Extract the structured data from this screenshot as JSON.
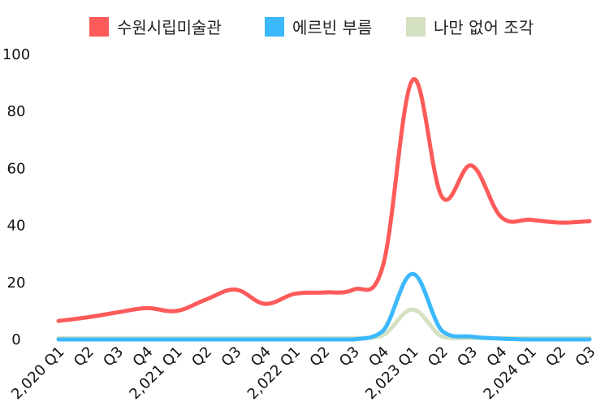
{
  "chart_data": {
    "type": "line",
    "title": "",
    "xlabel": "",
    "ylabel": "",
    "ylim": [
      0,
      100
    ],
    "yticks": [
      0,
      20,
      40,
      60,
      80,
      100
    ],
    "grid": false,
    "legend_position": "top",
    "categories": [
      "2,020 Q1",
      "Q2",
      "Q3",
      "Q4",
      "2,021 Q1",
      "Q2",
      "Q3",
      "Q4",
      "2,022 Q1",
      "Q2",
      "Q3",
      "Q4",
      "2,023 Q1",
      "Q2",
      "Q3",
      "Q4",
      "2,024 Q1",
      "Q2",
      "Q3"
    ],
    "series": [
      {
        "name": "수원시립미술관",
        "color": "#fd5a5a",
        "values": [
          6.5,
          7.8,
          9.5,
          11,
          10,
          14,
          17.5,
          12.5,
          16,
          16.5,
          17.5,
          26,
          91,
          50,
          61,
          43,
          42,
          41,
          41.5
        ]
      },
      {
        "name": "에르빈 부름",
        "color": "#3cb8fd",
        "values": [
          0,
          0,
          0,
          0,
          0,
          0,
          0,
          0,
          0,
          0,
          0,
          3,
          23,
          3,
          1,
          0.3,
          0,
          0,
          0
        ]
      },
      {
        "name": "나만 없어 조각",
        "color": "#d4e2c2",
        "values": [
          0.5,
          0.5,
          0.5,
          0.5,
          0.5,
          0.5,
          0.5,
          0.5,
          0.5,
          0.5,
          0.5,
          1.5,
          10.5,
          1,
          0.5,
          0.5,
          0.5,
          0.5,
          0.5
        ]
      }
    ]
  }
}
